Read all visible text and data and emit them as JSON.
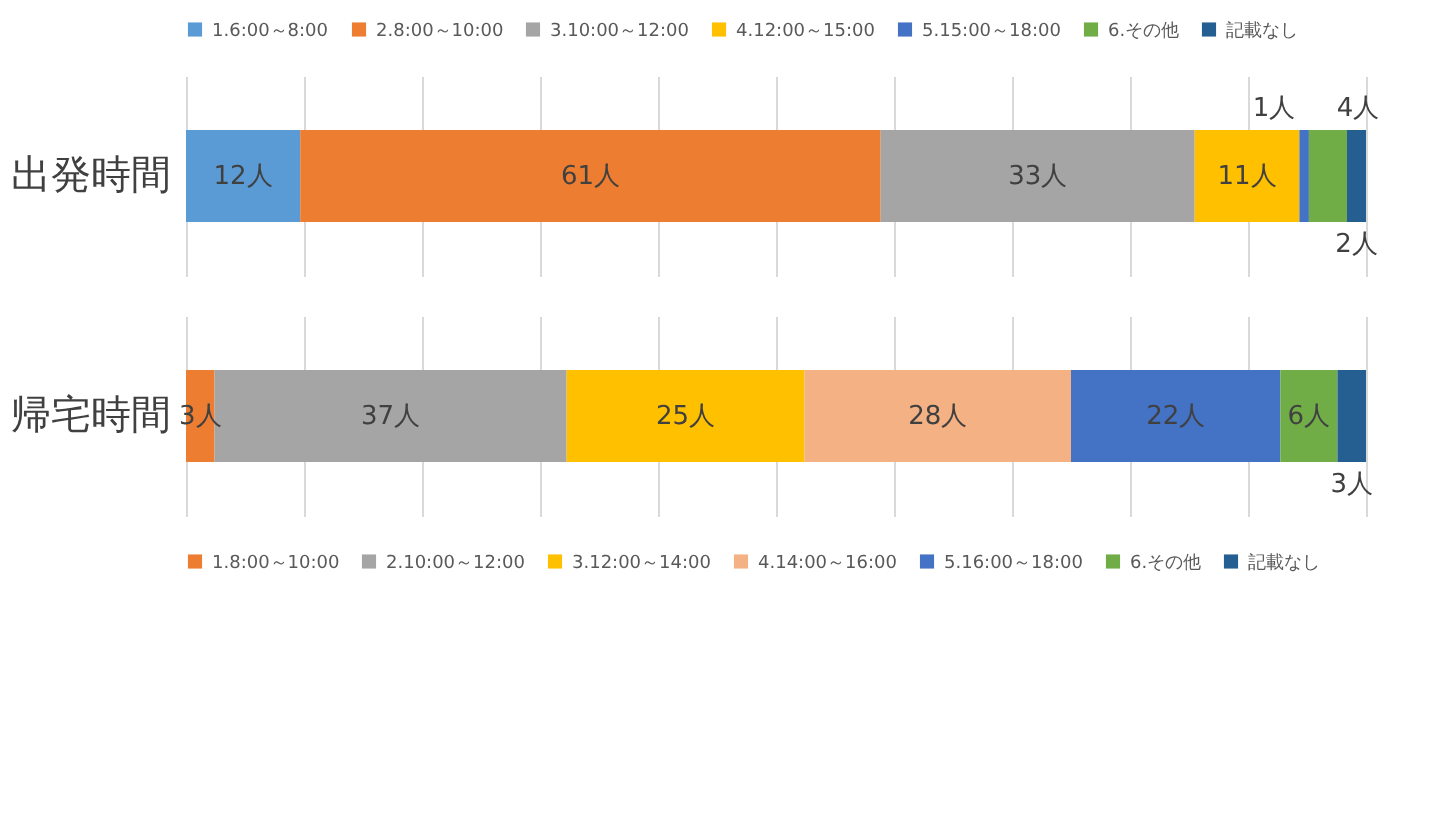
{
  "chart_data": [
    {
      "type": "bar",
      "orientation": "horizontal",
      "stacked": true,
      "categories": [
        "出発時間"
      ],
      "legend": "top",
      "grid": "x",
      "tick_labels": "y",
      "xlim": [
        0,
        124
      ],
      "xticks": [
        {
          "value": 0,
          "label": null
        },
        {
          "value": 12.4,
          "label": null
        },
        {
          "value": 24.8,
          "label": null
        },
        {
          "value": 37.2,
          "label": null
        },
        {
          "value": 49.6,
          "label": null
        },
        {
          "value": 62,
          "label": null
        },
        {
          "value": 74.4,
          "label": null
        },
        {
          "value": 86.8,
          "label": null
        },
        {
          "value": 99.2,
          "label": null
        },
        {
          "value": 111.6,
          "label": null
        },
        {
          "value": 124,
          "label": null
        }
      ],
      "series": [
        {
          "name": "1.6:00～8:00",
          "color": "#5b9bd5",
          "values": [
            12
          ],
          "value_labels": [
            "12人"
          ]
        },
        {
          "name": "2.8:00～10:00",
          "color": "#ed7d31",
          "values": [
            61
          ],
          "value_labels": [
            "61人"
          ]
        },
        {
          "name": "3.10:00～12:00",
          "color": "#a5a5a5",
          "values": [
            33
          ],
          "value_labels": [
            "33人"
          ]
        },
        {
          "name": "4.12:00～15:00",
          "color": "#ffc000",
          "values": [
            11
          ],
          "value_labels": [
            "11人"
          ]
        },
        {
          "name": "5.15:00～18:00",
          "color": "#4472c4",
          "values": [
            1
          ],
          "value_labels": [
            "1人"
          ]
        },
        {
          "name": "6.その他",
          "color": "#70ad47",
          "values": [
            4
          ],
          "value_labels": [
            "4人"
          ]
        },
        {
          "name": "記載なし",
          "color": "#255e91",
          "values": [
            2
          ],
          "value_labels": [
            "2人"
          ]
        }
      ]
    },
    {
      "type": "bar",
      "orientation": "horizontal",
      "stacked": true,
      "categories": [
        "帰宅時間"
      ],
      "legend": "bottom",
      "grid": "x",
      "tick_labels": "y",
      "xlim": [
        0,
        124
      ],
      "xticks": [
        {
          "value": 0,
          "label": null
        },
        {
          "value": 12.4,
          "label": null
        },
        {
          "value": 24.8,
          "label": null
        },
        {
          "value": 37.2,
          "label": null
        },
        {
          "value": 49.6,
          "label": null
        },
        {
          "value": 62,
          "label": null
        },
        {
          "value": 74.4,
          "label": null
        },
        {
          "value": 86.8,
          "label": null
        },
        {
          "value": 99.2,
          "label": null
        },
        {
          "value": 111.6,
          "label": null
        },
        {
          "value": 124,
          "label": null
        }
      ],
      "series": [
        {
          "name": "1.8:00～10:00",
          "color": "#ed7d31",
          "values": [
            3
          ],
          "value_labels": [
            "3人"
          ]
        },
        {
          "name": "2.10:00～12:00",
          "color": "#a5a5a5",
          "values": [
            37
          ],
          "value_labels": [
            "37人"
          ]
        },
        {
          "name": "3.12:00～14:00",
          "color": "#ffc000",
          "values": [
            25
          ],
          "value_labels": [
            "25人"
          ]
        },
        {
          "name": "4.14:00～16:00",
          "color": "#f4b183",
          "values": [
            28
          ],
          "value_labels": [
            "28人"
          ]
        },
        {
          "name": "5.16:00～18:00",
          "color": "#4472c4",
          "values": [
            22
          ],
          "value_labels": [
            "22人"
          ]
        },
        {
          "name": "6.その他",
          "color": "#70ad47",
          "values": [
            6
          ],
          "value_labels": [
            "6人"
          ]
        },
        {
          "name": "記載なし",
          "color": "#255e91",
          "values": [
            3
          ],
          "value_labels": [
            "3人"
          ]
        }
      ]
    }
  ]
}
